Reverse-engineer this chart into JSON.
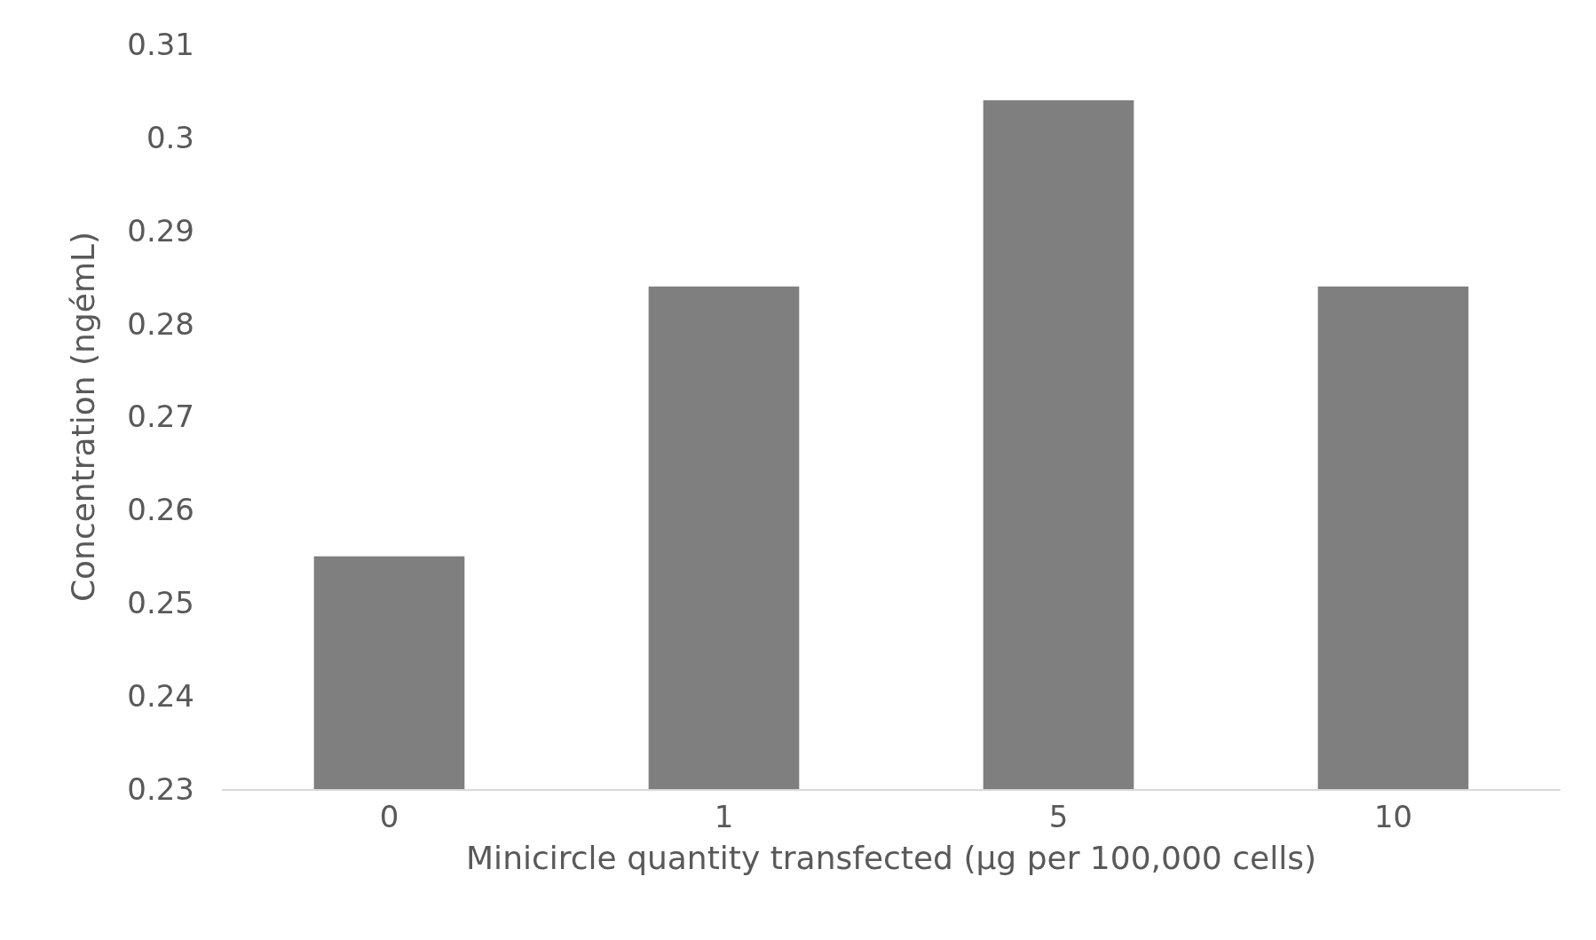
{
  "chart_data": {
    "type": "bar",
    "categories": [
      "0",
      "1",
      "5",
      "10"
    ],
    "values": [
      0.255,
      0.284,
      0.304,
      0.284
    ],
    "color": "#7f7f7f",
    "xlabel": "Minicircle quantity transfected (µg per 100,000 cells)",
    "ylabel": "Concentration (ngémL)",
    "ylim": [
      0.23,
      0.31
    ],
    "yticks": [
      0.23,
      0.24,
      0.25,
      0.26,
      0.27,
      0.28,
      0.29,
      0.3,
      0.31
    ]
  }
}
